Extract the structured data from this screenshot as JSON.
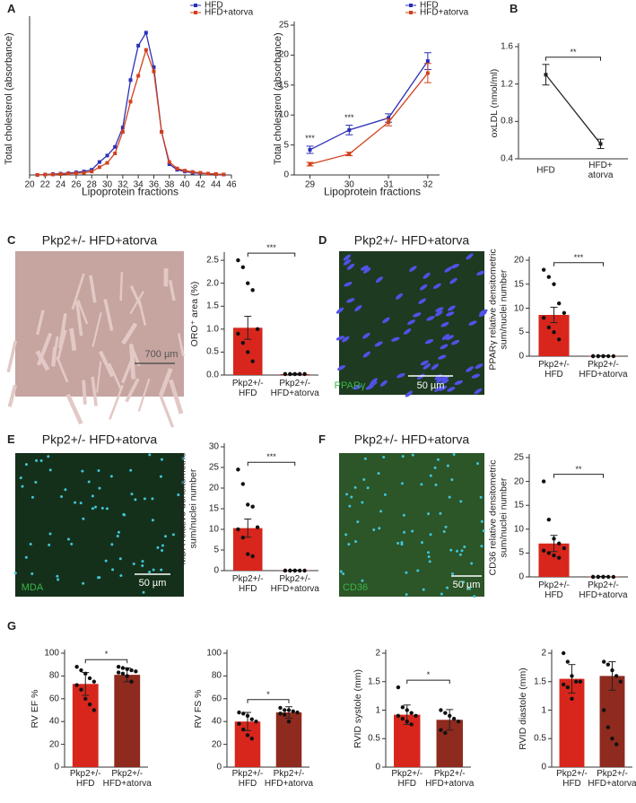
{
  "panels": [
    "A",
    "B",
    "C",
    "D",
    "E",
    "F",
    "G"
  ],
  "images": [
    {
      "title": "Pkp2+/- HFD+atorva",
      "labels": [
        "700 µm"
      ]
    },
    {
      "title": "Pkp2+/- HFD+atorva",
      "labels": [
        "PPARγ",
        "50 µm"
      ]
    },
    {
      "title": "Pkp2+/- HFD+atorva",
      "labels": [
        "MDA",
        "50 µm"
      ]
    },
    {
      "title": "Pkp2+/- HFD+atorva",
      "labels": [
        "CD36",
        "50 µm"
      ]
    }
  ],
  "chart_data": [
    {
      "type": "line",
      "xlabel": "Lipoprotein fractions",
      "ylabel": "Total cholesterol (absorbance)",
      "x": [
        21,
        22,
        23,
        24,
        25,
        26,
        27,
        28,
        29,
        30,
        31,
        32,
        33,
        34,
        35,
        36,
        37,
        38,
        39,
        40,
        41,
        42,
        43,
        44,
        45
      ],
      "xlim": [
        20,
        46
      ],
      "xticks": [
        20,
        22,
        24,
        26,
        28,
        30,
        32,
        34,
        36,
        38,
        40,
        42,
        44,
        46
      ],
      "ylim": [
        0,
        36
      ],
      "legend": "top",
      "series": [
        {
          "name": "HFD",
          "color": "#2b2fb8",
          "values": [
            0,
            0.1,
            0.2,
            0.3,
            0.4,
            0.6,
            0.8,
            1.2,
            3,
            4.5,
            6.5,
            11,
            22,
            30,
            33,
            25,
            10,
            2.5,
            1.2,
            0.8,
            0.5,
            0.4,
            0.3,
            0.2,
            0.1
          ]
        },
        {
          "name": "HFD+atorva",
          "color": "#d2401e",
          "values": [
            0,
            0.1,
            0.1,
            0.2,
            0.3,
            0.4,
            0.5,
            0.8,
            1.8,
            2.8,
            5,
            10,
            17,
            23,
            29,
            24,
            10,
            3,
            1.5,
            1,
            0.7,
            0.5,
            0.3,
            0.2,
            0.1
          ]
        }
      ]
    },
    {
      "type": "line",
      "xlabel": "Lipoprotein fractions",
      "ylabel": "Total cholesterol (absorbance)",
      "x": [
        29,
        30,
        31,
        32
      ],
      "xlim": [
        28.6,
        32.3
      ],
      "xticks": [
        29,
        30,
        31,
        32
      ],
      "ylim": [
        0,
        25
      ],
      "yticks": [
        0,
        5,
        10,
        15,
        20,
        25
      ],
      "legend": "top",
      "series": [
        {
          "name": "HFD",
          "color": "#2b2fb8",
          "values": [
            4.2,
            7.5,
            9.5,
            19
          ],
          "errors": [
            0.6,
            0.8,
            0.7,
            1.4
          ]
        },
        {
          "name": "HFD+atorva",
          "color": "#d2401e",
          "values": [
            1.8,
            3.5,
            8.8,
            17
          ],
          "errors": [
            0.3,
            0.3,
            0.6,
            1.6
          ]
        }
      ],
      "annotations": [
        {
          "text": "***",
          "x": 29
        },
        {
          "text": "***",
          "x": 30
        }
      ]
    },
    {
      "type": "line",
      "ylabel": "oxLDL (nmol/ml)",
      "categories": [
        "HFD",
        "HFD+\natorva"
      ],
      "values": [
        1.3,
        0.56
      ],
      "errors": [
        0.11,
        0.05
      ],
      "color": "#222222",
      "ylim": [
        0.4,
        1.6
      ],
      "yticks": [
        0.4,
        0.8,
        1.2,
        1.6
      ],
      "significance": "**"
    },
    {
      "type": "bar",
      "ylabel": "ORO⁺ area (%)",
      "categories": [
        "Pkp2+/-\nHFD",
        "Pkp2+/-\nHFD+atorva"
      ],
      "values": [
        1.03,
        0.02
      ],
      "errors": [
        0.25,
        0.01
      ],
      "colors": [
        "#d8261c",
        "#d8261c"
      ],
      "points": [
        [
          2.5,
          2.35,
          2.0,
          1.85,
          1.0,
          0.9,
          0.7,
          0.5,
          0.3
        ],
        [
          0.02,
          0.02,
          0.02,
          0.02,
          0.02,
          0.02,
          0.02,
          0.02,
          0.02,
          0.02
        ]
      ],
      "ylim": [
        0,
        2.6
      ],
      "yticks": [
        {
          "value": 0,
          "label": "0.0"
        },
        0.5,
        {
          "value": 1,
          "label": "1.0"
        },
        1.5,
        {
          "value": 2,
          "label": "2.0"
        },
        2.5
      ],
      "significance": "***"
    },
    {
      "type": "bar",
      "ylabel": "PPARγ relative densitometric\nsum/nuclei number",
      "categories": [
        "Pkp2+/-\nHFD",
        "Pkp2+/-\nHFD+atorva"
      ],
      "values": [
        8.6,
        0.1
      ],
      "errors": [
        1.6,
        0
      ],
      "colors": [
        "#d8261c",
        "#d8261c"
      ],
      "points": [
        [
          18,
          16.5,
          15,
          11,
          9,
          8,
          6,
          5,
          3.5
        ],
        [
          0,
          0,
          0,
          0,
          0,
          0,
          0,
          0
        ]
      ],
      "ylim": [
        0,
        20
      ],
      "yticks": [
        0,
        5,
        10,
        15,
        20
      ],
      "significance": "***"
    },
    {
      "type": "bar",
      "ylabel": "MDA relative densitometric\nsum/nuclei number",
      "categories": [
        "Pkp2+/-\nHFD",
        "Pkp2+/-\nHFD+atorva"
      ],
      "values": [
        10.3,
        0.1
      ],
      "errors": [
        2.2,
        0
      ],
      "colors": [
        "#d8261c",
        "#d8261c"
      ],
      "points": [
        [
          24.5,
          21,
          16,
          15.5,
          10.5,
          10,
          8,
          4,
          3.5
        ],
        [
          0,
          0,
          0,
          0,
          0,
          0,
          0,
          0
        ]
      ],
      "ylim": [
        0,
        30
      ],
      "yticks": [
        0,
        5,
        10,
        15,
        20,
        25,
        30
      ],
      "significance": "***"
    },
    {
      "type": "bar",
      "ylabel": "CD36 relative densitometric\nsum/nuclei number",
      "categories": [
        "Pkp2+/-\nHFD",
        "Pkp2+/-\nHFD+atorva"
      ],
      "values": [
        7,
        0.1
      ],
      "errors": [
        1.7,
        0
      ],
      "colors": [
        "#d8261c",
        "#d8261c"
      ],
      "points": [
        [
          20,
          12,
          8,
          7,
          6,
          5.5,
          5,
          4.5,
          4
        ],
        [
          0,
          0,
          0,
          0,
          0,
          0,
          0,
          0
        ]
      ],
      "ylim": [
        0,
        25
      ],
      "yticks": [
        0,
        5,
        10,
        15,
        20,
        25
      ],
      "significance": "**"
    },
    {
      "type": "bar",
      "ylabel": "RV EF %",
      "categories": [
        "Pkp2+/-\nHFD",
        "Pkp2+/-\nHFD+atorva"
      ],
      "values": [
        73,
        81
      ],
      "errors": [
        10,
        6
      ],
      "colors": [
        "#d8261c",
        "#8e2a1e"
      ],
      "points": [
        [
          88,
          85,
          82,
          78,
          75,
          72,
          68,
          60,
          55,
          50
        ],
        [
          88,
          87,
          86,
          85,
          84,
          83,
          82,
          80,
          75
        ]
      ],
      "ylim": [
        0,
        100
      ],
      "yticks": [
        0,
        20,
        40,
        60,
        80,
        100
      ],
      "significance": "*"
    },
    {
      "type": "bar",
      "ylabel": "RV FS %",
      "categories": [
        "Pkp2+/-\nHFD",
        "Pkp2+/-\nHFD+atorva"
      ],
      "values": [
        40,
        48
      ],
      "errors": [
        8,
        5
      ],
      "colors": [
        "#d8261c",
        "#8e2a1e"
      ],
      "points": [
        [
          48,
          47,
          45,
          42,
          40,
          38,
          33,
          28,
          25
        ],
        [
          52,
          50,
          50,
          49,
          48,
          47,
          46,
          40
        ]
      ],
      "ylim": [
        0,
        100
      ],
      "yticks": [
        0,
        20,
        40,
        60,
        80,
        100
      ],
      "significance": "*"
    },
    {
      "type": "bar",
      "ylabel": "RVID systole (mm)",
      "categories": [
        "Pkp2+/-\nHFD",
        "Pkp2+/-\nHFD+atorva"
      ],
      "values": [
        0.92,
        0.83
      ],
      "errors": [
        0.17,
        0.18
      ],
      "colors": [
        "#d8261c",
        "#8e2a1e"
      ],
      "points": [
        [
          1.4,
          1.05,
          1.0,
          0.95,
          0.9,
          0.9,
          0.85,
          0.8,
          0.75
        ],
        [
          1.0,
          0.95,
          0.9,
          0.85,
          0.8,
          0.65,
          0.6
        ]
      ],
      "ylim": [
        0,
        2
      ],
      "yticks": [
        0,
        0.5,
        1,
        1.5,
        2
      ],
      "significance": "*"
    },
    {
      "type": "bar",
      "ylabel": "RVID diastole (mm)",
      "categories": [
        "Pkp2+/-\nHFD",
        "Pkp2+/-\nHFD+atorva"
      ],
      "values": [
        1.55,
        1.6
      ],
      "errors": [
        0.25,
        0.25
      ],
      "colors": [
        "#d8261c",
        "#8e2a1e"
      ],
      "points": [
        [
          2.0,
          1.85,
          1.6,
          1.5,
          1.5,
          1.45,
          1.4,
          1.2
        ],
        [
          1.85,
          1.8,
          1.7,
          1.6,
          1.5,
          1.0,
          0.7,
          0.5,
          0.4
        ]
      ],
      "ylim": [
        0,
        2
      ],
      "yticks": [
        0,
        0.5,
        1,
        1.5,
        2
      ]
    }
  ]
}
